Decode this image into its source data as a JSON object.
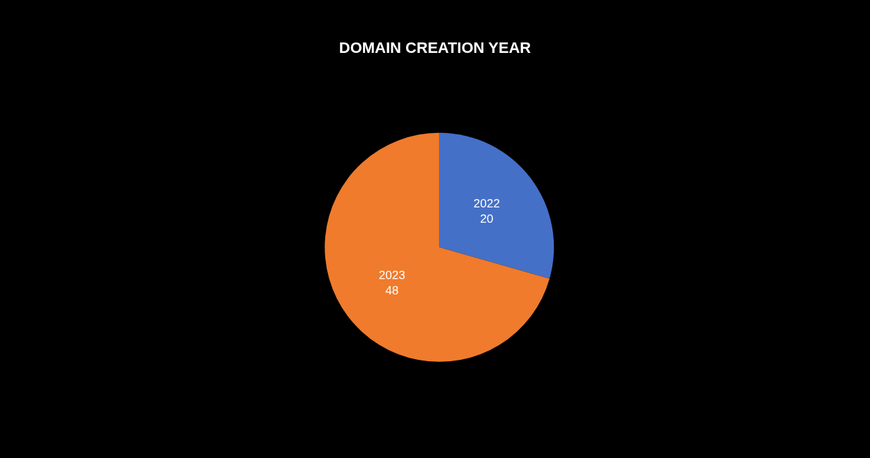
{
  "chart_data": {
    "type": "pie",
    "title": "DOMAIN CREATION YEAR",
    "categories": [
      "2022",
      "2023"
    ],
    "values": [
      20,
      48
    ],
    "colors": [
      "#4570c8",
      "#f07b2c"
    ],
    "data_labels": true,
    "legend": false
  }
}
